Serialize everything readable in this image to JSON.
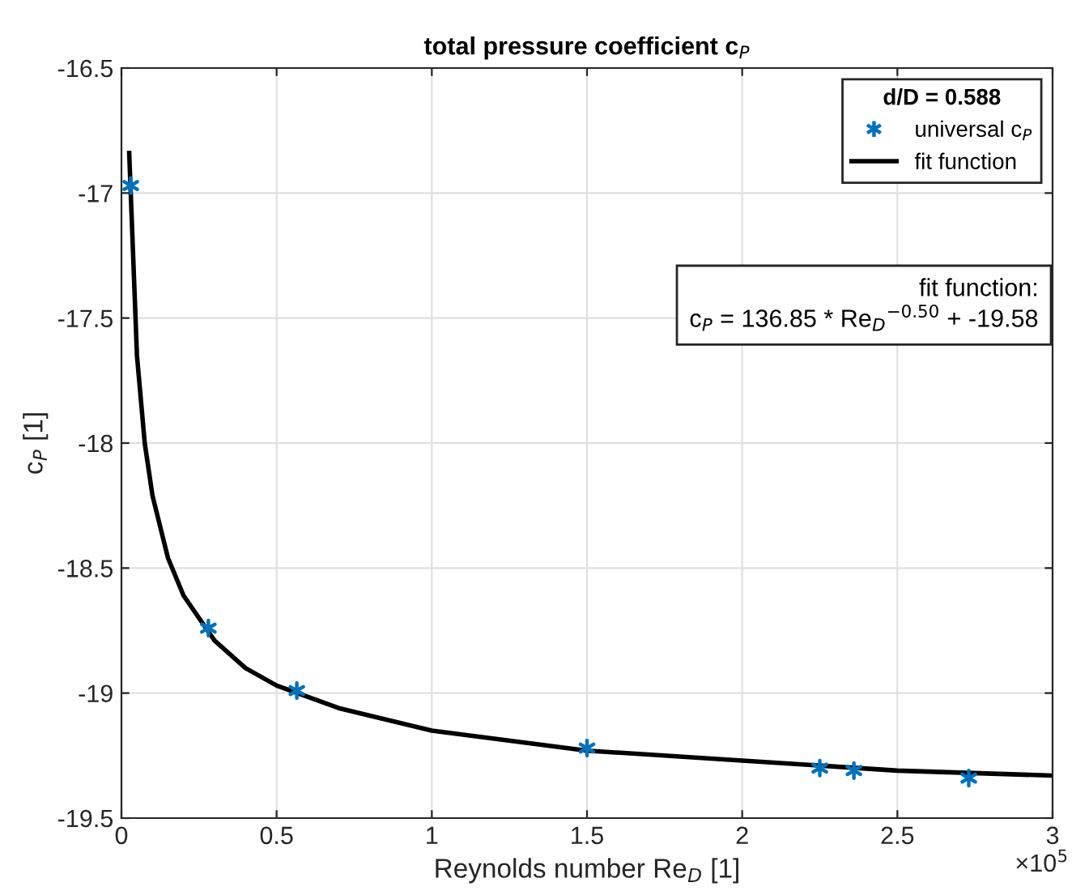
{
  "chart_data": {
    "type": "scatter",
    "title": "total pressure coefficient c$_{P}$",
    "xlabel": "Reynolds number Re$_{D}$ [1]",
    "ylabel": "c$_{P}$ [1]",
    "legend_title": "d/D = 0.588",
    "annotations": [
      "fit function:\nc$_{P}$ = 136.85 * Re$_{D}$$^{−0.50}$ + -19.58",
      "×10$^{5}$"
    ],
    "series": [
      {
        "name": "universal c$_{P}$",
        "color": "#0072bd",
        "marker": "cross",
        "x": [
          0.03,
          0.28,
          0.565,
          1.5,
          2.25,
          2.36,
          2.73
        ],
        "values": [
          -16.97,
          -18.74,
          -18.99,
          -19.22,
          -19.3,
          -19.31,
          -19.34
        ]
      },
      {
        "name": "fit function",
        "type": "line",
        "color": "#000000",
        "line_style": "solid",
        "marker": "none",
        "x": [
          0.025,
          0.05,
          0.075,
          0.1,
          0.15,
          0.2,
          0.3,
          0.4,
          0.5,
          0.7,
          1.0,
          1.5,
          2.0,
          2.5,
          3.0
        ],
        "values": [
          -16.84,
          -17.65,
          -18.0,
          -18.21,
          -18.46,
          -18.61,
          -18.79,
          -18.9,
          -18.97,
          -19.06,
          -19.15,
          -19.23,
          -19.27,
          -19.31,
          -19.33
        ]
      }
    ],
    "xlim": [
      0,
      3
    ],
    "xticks": [
      0,
      0.5,
      1,
      1.5,
      2,
      2.5,
      3
    ],
    "ylim": [
      -19.5,
      -16.5
    ],
    "yticks": [
      -19.5,
      -19,
      -18.5,
      -18,
      -17.5,
      -17,
      -16.5
    ],
    "grid": true,
    "legend": "top right"
  }
}
